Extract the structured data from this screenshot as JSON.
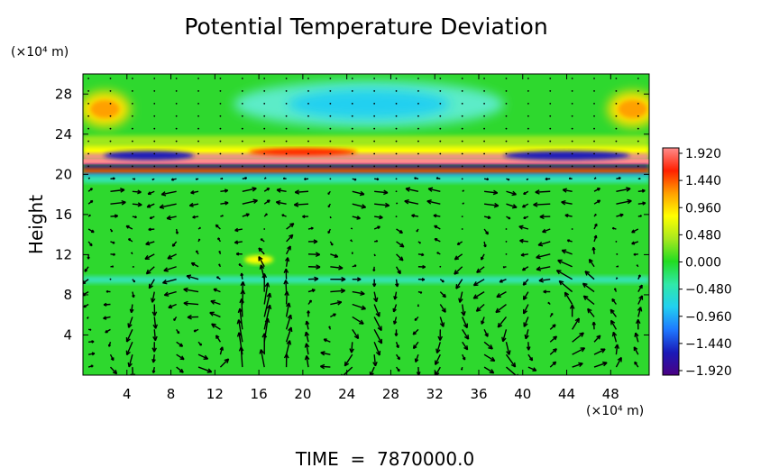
{
  "chart_data": {
    "type": "heatmap",
    "title": "Potential Temperature Deviation",
    "ylabel": "Height",
    "x_unit_label": "(×10⁴ m)",
    "y_unit_label": "(×10⁴ m)",
    "footer_text": "TIME  =  7870000.0",
    "xlim": [
      0,
      51.5
    ],
    "ylim": [
      0,
      30
    ],
    "x_ticks": [
      4,
      8,
      12,
      16,
      20,
      24,
      28,
      32,
      36,
      40,
      44,
      48
    ],
    "y_ticks": [
      4,
      8,
      12,
      16,
      20,
      24,
      28
    ],
    "colorbar": {
      "labels": [
        "1.920",
        "1.440",
        "0.960",
        "0.480",
        "0.000",
        "-0.480",
        "-0.960",
        "-1.440",
        "-1.920"
      ],
      "range": [
        -1.92,
        1.92
      ],
      "colormap": [
        "#4b0082",
        "#1a1ab8",
        "#1e78ff",
        "#22d0f0",
        "#30e8a8",
        "#22dc22",
        "#a8e81e",
        "#ffff00",
        "#ffa000",
        "#ff2000",
        "#ff8c8c"
      ]
    },
    "field_features": [
      {
        "kind": "warm-blob",
        "x": 2,
        "y": 26.5,
        "value": 1.0
      },
      {
        "kind": "warm-blob",
        "x": 50,
        "y": 26.5,
        "value": 1.0
      },
      {
        "kind": "cool-region",
        "x": 26,
        "y": 27,
        "value": -0.6
      },
      {
        "kind": "dipole-band",
        "y_center": 20.8,
        "value_top": 1.9,
        "value_bottom": -1.9
      },
      {
        "kind": "cool-band",
        "y": 19.5,
        "value": -0.5
      },
      {
        "kind": "cool-band",
        "y": 9.5,
        "value": -0.4
      },
      {
        "kind": "warm-streak",
        "x": 16,
        "y": 11.5,
        "value": 0.9
      }
    ],
    "vortices": [
      {
        "x": 12,
        "y": 3.5,
        "radius": 5
      },
      {
        "x": 21,
        "y": 3.5,
        "radius": 5
      },
      {
        "x": 42,
        "y": 5,
        "radius": 4.5
      }
    ],
    "grid": false,
    "legend": "right"
  }
}
